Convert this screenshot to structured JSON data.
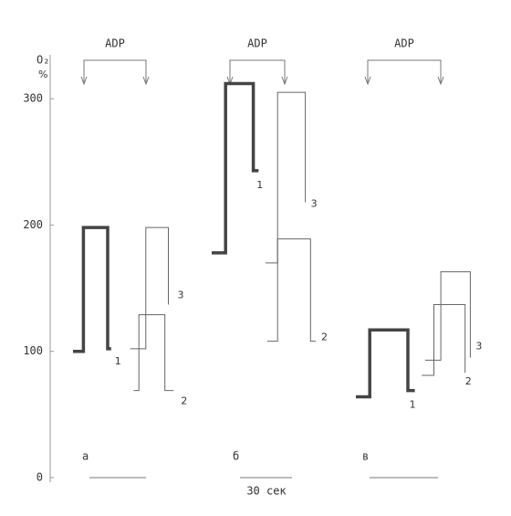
{
  "chart_data": {
    "type": "line",
    "ylabel": "O₂",
    "ylabel_unit": "%",
    "ylim": [
      0,
      330
    ],
    "yticks": [
      0,
      100,
      200,
      300
    ],
    "scale_label": "30 сек",
    "panels": [
      {
        "label": "a",
        "marker": "ADP",
        "series": [
          {
            "name": "1",
            "color": "#444",
            "width": 3.5,
            "x": [
              0,
              6,
              6,
              20,
              20,
              22
            ],
            "values": [
              100,
              100,
              198,
              198,
              102,
              102
            ]
          },
          {
            "name": "2",
            "color": "#666",
            "width": 1,
            "x": [
              35,
              38,
              38,
              53,
              53,
              58
            ],
            "values": [
              69,
              69,
              129,
              129,
              69,
              69
            ]
          },
          {
            "name": "3",
            "color": "#666",
            "width": 1,
            "x": [
              33,
              42,
              42,
              55,
              55
            ],
            "values": [
              102,
              102,
              198,
              198,
              137
            ]
          }
        ]
      },
      {
        "label": "б",
        "marker": "ADP",
        "series": [
          {
            "name": "1",
            "color": "#444",
            "width": 3.5,
            "x": [
              0,
              8,
              8,
              24,
              24,
              27
            ],
            "values": [
              178,
              178,
              312,
              312,
              243,
              243
            ]
          },
          {
            "name": "2",
            "color": "#666",
            "width": 1,
            "x": [
              32,
              38,
              38,
              57,
              57,
              60
            ],
            "values": [
              108,
              108,
              189,
              189,
              108,
              108
            ]
          },
          {
            "name": "3",
            "color": "#666",
            "width": 1,
            "x": [
              31,
              38,
              38,
              54,
              54
            ],
            "values": [
              170,
              170,
              305,
              305,
              218
            ]
          }
        ]
      },
      {
        "label": "в",
        "marker": "ADP",
        "series": [
          {
            "name": "1",
            "color": "#444",
            "width": 3.5,
            "x": [
              0,
              8,
              8,
              30,
              30,
              34
            ],
            "values": [
              64,
              64,
              117,
              117,
              69,
              69
            ]
          },
          {
            "name": "2",
            "color": "#666",
            "width": 1,
            "x": [
              38,
              45,
              45,
              63,
              63
            ],
            "values": [
              81,
              81,
              137,
              137,
              83
            ]
          },
          {
            "name": "3",
            "color": "#666",
            "width": 1,
            "x": [
              40,
              49,
              49,
              66,
              66
            ],
            "values": [
              93,
              93,
              163,
              163,
              95
            ]
          }
        ]
      }
    ]
  }
}
